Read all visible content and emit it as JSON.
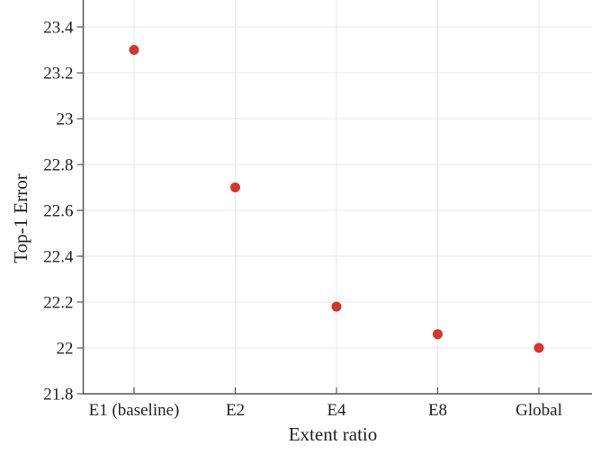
{
  "chart_data": {
    "type": "scatter",
    "title": "",
    "xlabel": "Extent ratio",
    "ylabel": "Top-1 Error",
    "categories": [
      "E1 (baseline)",
      "E2",
      "E4",
      "E8",
      "Global"
    ],
    "values": [
      23.3,
      22.7,
      22.18,
      22.06,
      22.0
    ],
    "series": [
      {
        "name": "Top-1 Error",
        "values": [
          23.3,
          22.7,
          22.18,
          22.06,
          22.0
        ]
      }
    ],
    "yticks": [
      21.8,
      22,
      22.2,
      22.4,
      22.6,
      22.8,
      23,
      23.2,
      23.4
    ],
    "ytick_labels": [
      "21.8",
      "22",
      "22.2",
      "22.4",
      "22.6",
      "22.8",
      "23",
      "23.2",
      "23.4"
    ],
    "ylim": [
      21.8,
      23.52
    ],
    "grid": true,
    "legend": "none",
    "marker": "circle",
    "colors": {
      "point": "#d7342b",
      "grid": "#e7e7e7",
      "axis": "#555555",
      "text": "#222222"
    }
  }
}
